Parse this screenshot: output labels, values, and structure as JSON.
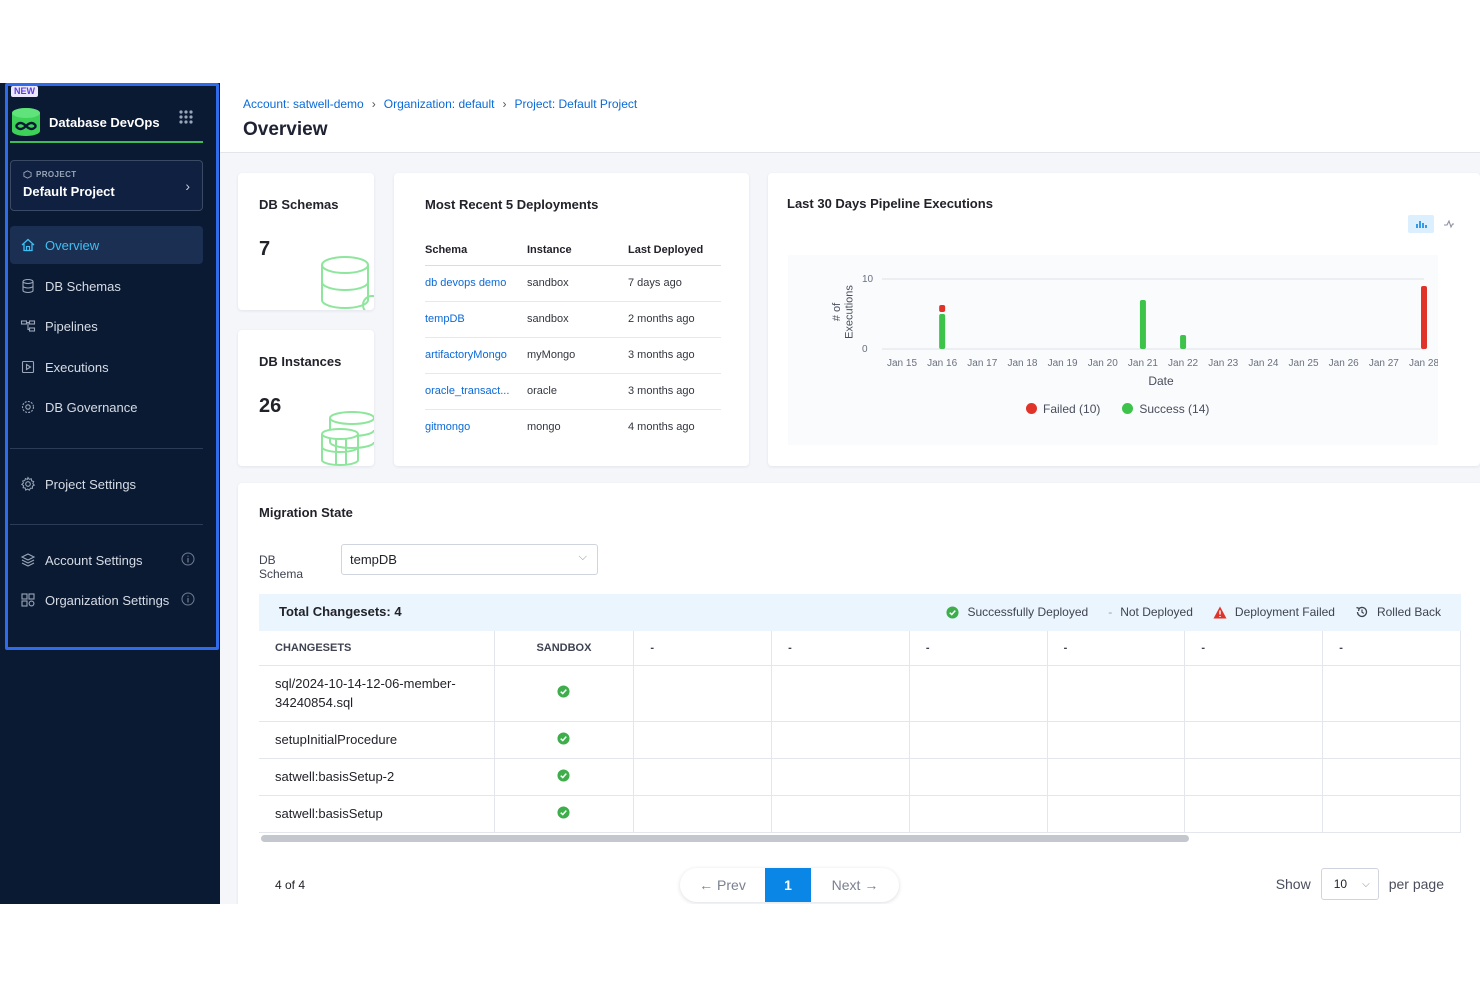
{
  "sidebar": {
    "badge": "NEW",
    "module_name": "Database DevOps",
    "project_kicker": "PROJECT",
    "project_name": "Default Project",
    "items": [
      {
        "label": "Overview"
      },
      {
        "label": "DB Schemas"
      },
      {
        "label": "Pipelines"
      },
      {
        "label": "Executions"
      },
      {
        "label": "DB Governance"
      },
      {
        "label": "Project Settings"
      },
      {
        "label": "Account Settings"
      },
      {
        "label": "Organization Settings"
      }
    ]
  },
  "header": {
    "breadcrumbs": [
      "Account: satwell-demo",
      "Organization: default",
      "Project: Default Project"
    ],
    "title": "Overview"
  },
  "stats": {
    "schemas": {
      "title": "DB Schemas",
      "value": "7"
    },
    "instances": {
      "title": "DB Instances",
      "value": "26"
    }
  },
  "deployments": {
    "title": "Most Recent 5 Deployments",
    "columns": [
      "Schema",
      "Instance",
      "Last Deployed"
    ],
    "rows": [
      {
        "schema": "db devops demo",
        "instance": "sandbox",
        "last": "7 days ago"
      },
      {
        "schema": "tempDB",
        "instance": "sandbox",
        "last": "2 months ago"
      },
      {
        "schema": "artifactoryMongo",
        "instance": "myMongo",
        "last": "3 months ago"
      },
      {
        "schema": "oracle_transact...",
        "instance": "oracle",
        "last": "3 months ago"
      },
      {
        "schema": "gitmongo",
        "instance": "mongo",
        "last": "4 months ago"
      }
    ]
  },
  "chart_data": {
    "type": "bar",
    "title": "Last 30 Days Pipeline Executions",
    "xlabel": "Date",
    "ylabel": "# of Executions",
    "ylim": [
      0,
      10
    ],
    "yticks": [
      0,
      10
    ],
    "grid": true,
    "legend_position": "bottom",
    "categories": [
      "Jan 15",
      "Jan 16",
      "Jan 17",
      "Jan 18",
      "Jan 19",
      "Jan 20",
      "Jan 21",
      "Jan 22",
      "Jan 23",
      "Jan 24",
      "Jan 25",
      "Jan 26",
      "Jan 27",
      "Jan 28"
    ],
    "series": [
      {
        "name": "Success",
        "color": "#3dc24a",
        "values": [
          0,
          5,
          0,
          0,
          0,
          0,
          7,
          2,
          0,
          0,
          0,
          0,
          0,
          0
        ]
      },
      {
        "name": "Failed",
        "color": "#e0342a",
        "values": [
          0,
          1,
          0,
          0,
          0,
          0,
          0,
          0,
          0,
          0,
          0,
          0,
          0,
          9
        ]
      }
    ],
    "legend": [
      "Failed (10)",
      "Success (14)"
    ]
  },
  "migration": {
    "title": "Migration State",
    "schema_label": "DB Schema",
    "schema_value": "tempDB",
    "total_label": "Total Changesets: 4",
    "legend": [
      "Successfully Deployed",
      "Not Deployed",
      "Deployment Failed",
      "Rolled Back"
    ],
    "columns": [
      "CHANGESETS",
      "SANDBOX",
      "-",
      "-",
      "-",
      "-",
      "-",
      "-"
    ],
    "rows": [
      {
        "name": "sql/2024-10-14-12-06-member-34240854.sql",
        "status": "success"
      },
      {
        "name": "setupInitialProcedure",
        "status": "success"
      },
      {
        "name": "satwell:basisSetup-2",
        "status": "success"
      },
      {
        "name": "satwell:basisSetup",
        "status": "success"
      }
    ]
  },
  "pagination": {
    "count": "4 of 4",
    "prev": "← Prev",
    "page": "1",
    "next": "Next →",
    "show": "Show",
    "per_page_value": "10",
    "per_page": "per page"
  }
}
